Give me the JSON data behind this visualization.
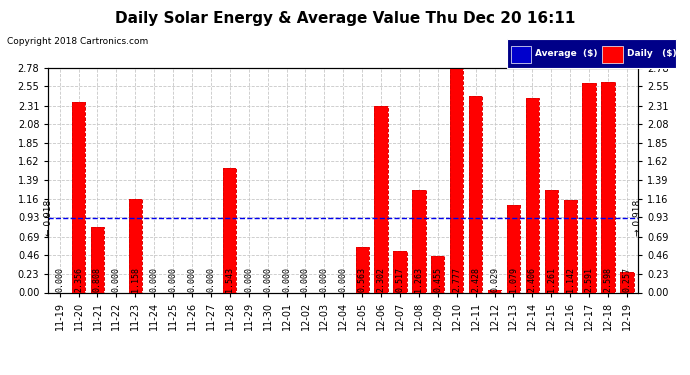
{
  "title": "Daily Solar Energy & Average Value Thu Dec 20 16:11",
  "copyright": "Copyright 2018 Cartronics.com",
  "categories": [
    "11-19",
    "11-20",
    "11-21",
    "11-22",
    "11-23",
    "11-24",
    "11-25",
    "11-26",
    "11-27",
    "11-28",
    "11-29",
    "11-30",
    "12-01",
    "12-02",
    "12-03",
    "12-04",
    "12-05",
    "12-06",
    "12-07",
    "12-08",
    "12-09",
    "12-10",
    "12-11",
    "12-12",
    "12-13",
    "12-14",
    "12-15",
    "12-16",
    "12-17",
    "12-18",
    "12-19"
  ],
  "values": [
    0.0,
    2.356,
    0.808,
    0.0,
    1.158,
    0.0,
    0.0,
    0.0,
    0.0,
    1.543,
    0.0,
    0.0,
    0.0,
    0.0,
    0.0,
    0.0,
    0.563,
    2.302,
    0.517,
    1.263,
    0.455,
    2.777,
    2.428,
    0.029,
    1.079,
    2.406,
    1.261,
    1.142,
    2.591,
    2.598,
    0.257
  ],
  "average_value": 0.918,
  "ylim": [
    0.0,
    2.78
  ],
  "yticks": [
    0.0,
    0.23,
    0.46,
    0.69,
    0.93,
    1.16,
    1.39,
    1.62,
    1.85,
    2.08,
    2.31,
    2.55,
    2.78
  ],
  "bar_color": "#ff0000",
  "avg_line_color": "#0000ee",
  "background_color": "#ffffff",
  "plot_bg_color": "#ffffff",
  "grid_color": "#c8c8c8",
  "title_fontsize": 11,
  "tick_fontsize": 7,
  "annotation_fontsize": 6,
  "avg_annotation": "0.918",
  "legend_avg_color": "#0000cc",
  "legend_daily_color": "#ff0000"
}
